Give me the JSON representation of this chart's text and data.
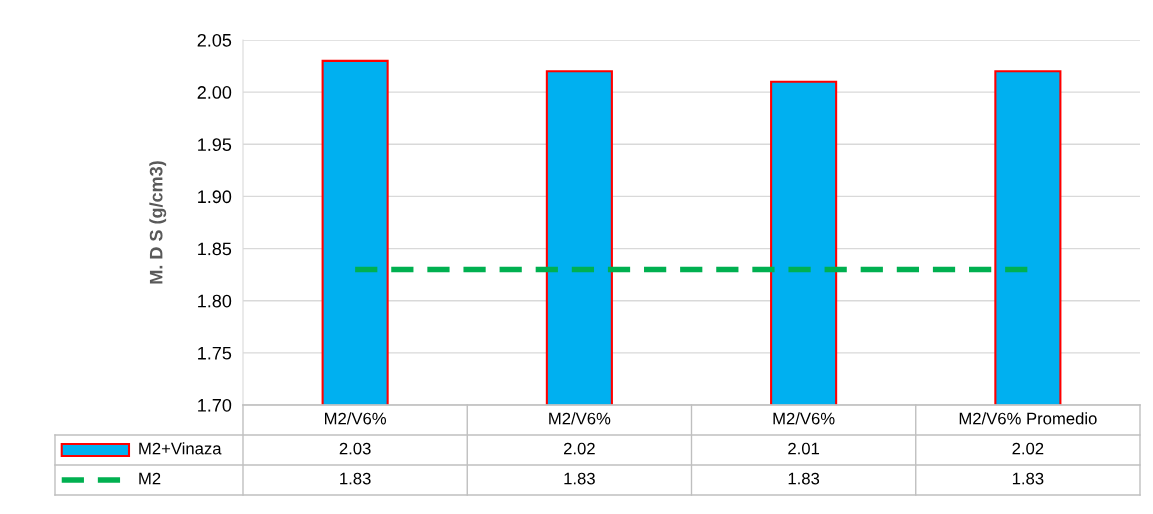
{
  "chart_data": {
    "type": "bar",
    "ylabel": "M. D S (g/cm3)",
    "categories": [
      "M2/V6%",
      "M2/V6%",
      "M2/V6%",
      "M2/V6% Promedio"
    ],
    "series": [
      {
        "name": "M2+Vinaza",
        "color": "#00b0f0",
        "values": [
          2.03,
          2.02,
          2.01,
          2.02
        ]
      },
      {
        "name": "M2",
        "type": "line",
        "color": "#00b050",
        "line_style": "dashed",
        "values": [
          1.83,
          1.83,
          1.83,
          1.83
        ]
      }
    ],
    "ylim": [
      1.7,
      2.05
    ],
    "yticks": [
      "1.70",
      "1.75",
      "1.80",
      "1.85",
      "1.90",
      "1.95",
      "2.00",
      "2.05"
    ],
    "grid": "y",
    "data_labels": true,
    "legend": "bottom left"
  }
}
